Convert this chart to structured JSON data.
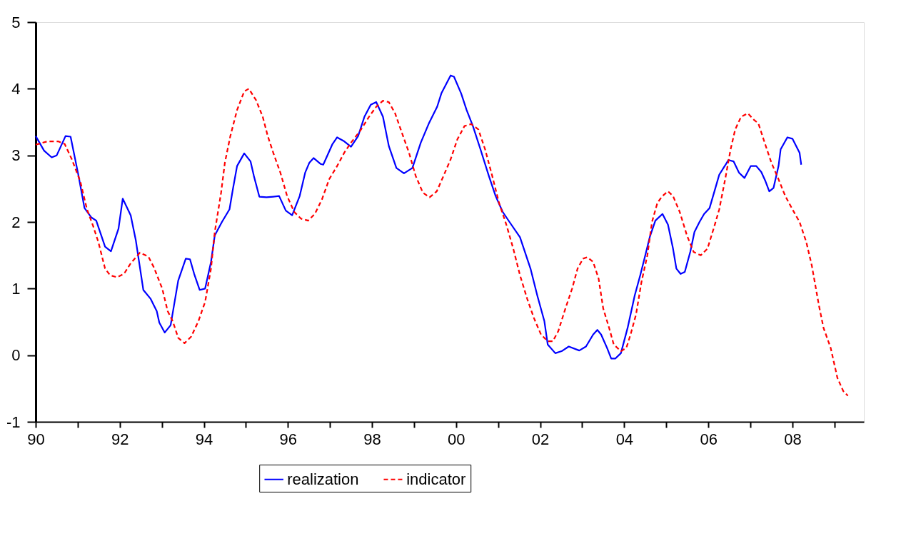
{
  "chart_data": {
    "type": "line",
    "xlim": [
      1990,
      2009.7
    ],
    "xticks": [
      {
        "value": 1990,
        "label": "90"
      },
      {
        "value": 1991,
        "label": null
      },
      {
        "value": 1992,
        "label": "92"
      },
      {
        "value": 1993,
        "label": null
      },
      {
        "value": 1994,
        "label": "94"
      },
      {
        "value": 1995,
        "label": null
      },
      {
        "value": 1996,
        "label": "96"
      },
      {
        "value": 1997,
        "label": null
      },
      {
        "value": 1998,
        "label": "98"
      },
      {
        "value": 1999,
        "label": null
      },
      {
        "value": 2000,
        "label": "00"
      },
      {
        "value": 2001,
        "label": null
      },
      {
        "value": 2002,
        "label": "02"
      },
      {
        "value": 2003,
        "label": null
      },
      {
        "value": 2004,
        "label": "04"
      },
      {
        "value": 2005,
        "label": null
      },
      {
        "value": 2006,
        "label": "06"
      },
      {
        "value": 2007,
        "label": null
      },
      {
        "value": 2008,
        "label": "08"
      },
      {
        "value": 2009,
        "label": null
      }
    ],
    "ylim": [
      -1,
      5
    ],
    "yticks": [
      -1,
      0,
      1,
      2,
      3,
      4,
      5
    ],
    "grid": false,
    "legend": "bottom",
    "marker": "none",
    "series": [
      {
        "name": "realization",
        "color": "#0000ff",
        "line_style": "solid",
        "x": [
          1990.0,
          1990.2,
          1990.38,
          1990.5,
          1990.71,
          1990.83,
          1991.02,
          1991.16,
          1991.32,
          1991.44,
          1991.65,
          1991.79,
          1991.97,
          1992.07,
          1992.26,
          1992.38,
          1992.56,
          1992.73,
          1992.88,
          1992.94,
          1993.07,
          1993.21,
          1993.39,
          1993.57,
          1993.67,
          1993.77,
          1993.9,
          1994.03,
          1994.17,
          1994.26,
          1994.43,
          1994.61,
          1994.69,
          1994.79,
          1994.96,
          1995.11,
          1995.19,
          1995.32,
          1995.49,
          1995.65,
          1995.79,
          1995.95,
          1996.1,
          1996.28,
          1996.41,
          1996.51,
          1996.61,
          1996.78,
          1996.84,
          1997.06,
          1997.17,
          1997.34,
          1997.5,
          1997.67,
          1997.82,
          1997.97,
          1998.1,
          1998.26,
          1998.4,
          1998.58,
          1998.76,
          1998.96,
          1999.16,
          1999.36,
          1999.55,
          1999.65,
          1999.87,
          1999.95,
          2000.12,
          2000.25,
          2000.4,
          2000.58,
          2000.78,
          2000.94,
          2001.11,
          2001.27,
          2001.52,
          2001.77,
          2001.93,
          2002.1,
          2002.18,
          2002.36,
          2002.51,
          2002.68,
          2002.93,
          2003.09,
          2003.26,
          2003.36,
          2003.45,
          2003.59,
          2003.69,
          2003.79,
          2003.92,
          2004.08,
          2004.25,
          2004.38,
          2004.5,
          2004.61,
          2004.74,
          2004.91,
          2005.04,
          2005.16,
          2005.24,
          2005.34,
          2005.44,
          2005.57,
          2005.67,
          2005.79,
          2005.9,
          2006.03,
          2006.15,
          2006.26,
          2006.36,
          2006.48,
          2006.6,
          2006.73,
          2006.86,
          2007.01,
          2007.14,
          2007.26,
          2007.36,
          2007.45,
          2007.55,
          2007.67,
          2007.72,
          2007.88,
          2008.0,
          2008.17,
          2008.21
        ],
        "values": [
          3.29,
          3.07,
          2.97,
          3.0,
          3.29,
          3.28,
          2.69,
          2.21,
          2.07,
          2.02,
          1.63,
          1.56,
          1.9,
          2.35,
          2.1,
          1.73,
          0.98,
          0.85,
          0.66,
          0.49,
          0.34,
          0.45,
          1.12,
          1.45,
          1.44,
          1.22,
          0.98,
          1.0,
          1.4,
          1.8,
          2.0,
          2.19,
          2.49,
          2.84,
          3.03,
          2.91,
          2.69,
          2.38,
          2.37,
          2.38,
          2.39,
          2.17,
          2.1,
          2.39,
          2.74,
          2.89,
          2.96,
          2.87,
          2.86,
          3.17,
          3.27,
          3.21,
          3.13,
          3.29,
          3.58,
          3.76,
          3.8,
          3.58,
          3.14,
          2.81,
          2.73,
          2.81,
          3.19,
          3.49,
          3.73,
          3.93,
          4.2,
          4.18,
          3.93,
          3.68,
          3.44,
          3.09,
          2.69,
          2.39,
          2.15,
          2.0,
          1.77,
          1.3,
          0.9,
          0.51,
          0.16,
          0.03,
          0.06,
          0.13,
          0.07,
          0.13,
          0.31,
          0.38,
          0.31,
          0.11,
          -0.05,
          -0.05,
          0.03,
          0.41,
          0.9,
          1.2,
          1.5,
          1.78,
          2.02,
          2.12,
          1.96,
          1.6,
          1.3,
          1.22,
          1.25,
          1.55,
          1.85,
          2.0,
          2.12,
          2.21,
          2.47,
          2.71,
          2.81,
          2.93,
          2.91,
          2.74,
          2.66,
          2.84,
          2.84,
          2.75,
          2.61,
          2.46,
          2.51,
          2.84,
          3.09,
          3.27,
          3.25,
          3.04,
          2.86
        ]
      },
      {
        "name": "indicator",
        "color": "#ff0000",
        "line_style": "dashed",
        "x": [
          1990.0,
          1990.28,
          1990.53,
          1990.69,
          1990.86,
          1991.06,
          1991.22,
          1991.36,
          1991.49,
          1991.65,
          1991.77,
          1991.93,
          1992.1,
          1992.26,
          1992.48,
          1992.68,
          1992.81,
          1993.01,
          1993.14,
          1993.26,
          1993.39,
          1993.54,
          1993.7,
          1993.87,
          1994.03,
          1994.17,
          1994.26,
          1994.41,
          1994.5,
          1994.63,
          1994.79,
          1994.96,
          1995.07,
          1995.24,
          1995.4,
          1995.52,
          1995.65,
          1995.82,
          1995.98,
          1996.15,
          1996.31,
          1996.48,
          1996.64,
          1996.81,
          1996.98,
          1997.17,
          1997.34,
          1997.5,
          1997.72,
          1997.93,
          1998.1,
          1998.26,
          1998.4,
          1998.55,
          1998.71,
          1998.88,
          1999.04,
          1999.21,
          1999.37,
          1999.54,
          1999.7,
          1999.87,
          2000.03,
          2000.2,
          2000.36,
          2000.53,
          2000.69,
          2000.86,
          2001.02,
          2001.19,
          2001.36,
          2001.52,
          2001.69,
          2001.85,
          2002.02,
          2002.18,
          2002.3,
          2002.43,
          2002.6,
          2002.76,
          2002.89,
          2003.02,
          2003.12,
          2003.26,
          2003.39,
          2003.5,
          2003.64,
          2003.75,
          2003.92,
          2004.05,
          2004.15,
          2004.28,
          2004.41,
          2004.55,
          2004.66,
          2004.79,
          2004.91,
          2005.04,
          2005.16,
          2005.32,
          2005.49,
          2005.65,
          2005.82,
          2005.98,
          2006.15,
          2006.26,
          2006.4,
          2006.53,
          2006.64,
          2006.78,
          2006.94,
          2007.09,
          2007.19,
          2007.34,
          2007.5,
          2007.67,
          2007.83,
          2008.0,
          2008.17,
          2008.33,
          2008.46,
          2008.63,
          2008.74,
          2008.91,
          2009.07,
          2009.21,
          2009.32
        ],
        "values": [
          3.16,
          3.21,
          3.21,
          3.17,
          2.94,
          2.61,
          2.19,
          1.95,
          1.7,
          1.3,
          1.2,
          1.17,
          1.22,
          1.38,
          1.54,
          1.48,
          1.32,
          1.0,
          0.66,
          0.51,
          0.26,
          0.18,
          0.28,
          0.51,
          0.8,
          1.3,
          1.85,
          2.44,
          2.89,
          3.29,
          3.68,
          3.96,
          4.0,
          3.83,
          3.58,
          3.29,
          3.04,
          2.74,
          2.39,
          2.15,
          2.05,
          2.02,
          2.12,
          2.34,
          2.64,
          2.84,
          3.04,
          3.19,
          3.37,
          3.58,
          3.73,
          3.82,
          3.8,
          3.63,
          3.34,
          3.04,
          2.69,
          2.44,
          2.37,
          2.46,
          2.69,
          2.94,
          3.24,
          3.44,
          3.47,
          3.39,
          3.09,
          2.69,
          2.29,
          1.97,
          1.6,
          1.2,
          0.85,
          0.56,
          0.31,
          0.21,
          0.21,
          0.36,
          0.7,
          1.0,
          1.3,
          1.45,
          1.47,
          1.4,
          1.15,
          0.7,
          0.41,
          0.16,
          0.06,
          0.11,
          0.31,
          0.61,
          1.1,
          1.5,
          2.0,
          2.29,
          2.39,
          2.46,
          2.39,
          2.15,
          1.8,
          1.55,
          1.5,
          1.6,
          1.95,
          2.19,
          2.64,
          3.09,
          3.39,
          3.58,
          3.63,
          3.53,
          3.48,
          3.19,
          2.89,
          2.64,
          2.39,
          2.19,
          2.0,
          1.7,
          1.35,
          0.75,
          0.41,
          0.11,
          -0.34,
          -0.54,
          -0.61
        ]
      }
    ]
  }
}
